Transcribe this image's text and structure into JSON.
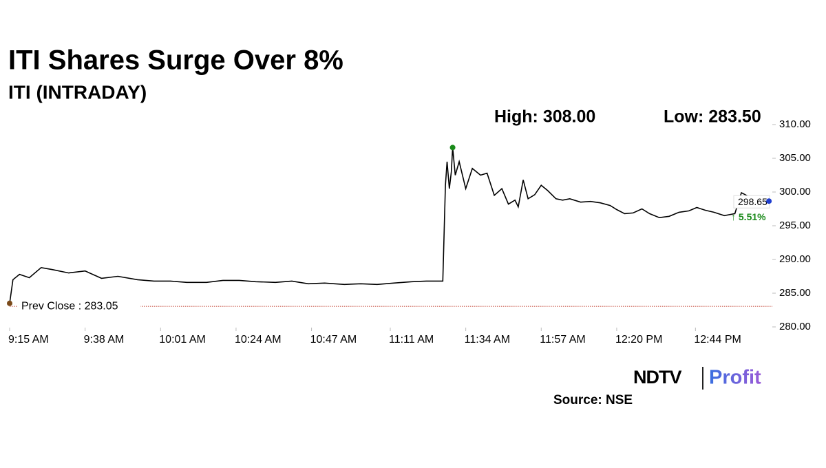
{
  "chart_data": {
    "type": "line",
    "title": "ITI Shares Surge Over 8%",
    "subtitle": "ITI (INTRADAY)",
    "high_label": "High: 308.00",
    "low_label": "Low: 283.50",
    "prev_close": {
      "label": "Prev Close : 283.05",
      "value": 283.05,
      "color": "#c0392b"
    },
    "last_label": "298.65",
    "change_label": "↑ 5.51%",
    "change_color": "#1a8a1a",
    "source": "Source: NSE",
    "logo": {
      "left": "NDTV",
      "right": "Profit"
    },
    "xlim": [
      555,
      787
    ],
    "xticks": [
      {
        "value": 555,
        "label": "9:15 AM"
      },
      {
        "value": 578,
        "label": "9:38 AM"
      },
      {
        "value": 601,
        "label": "10:01 AM"
      },
      {
        "value": 624,
        "label": "10:24 AM"
      },
      {
        "value": 647,
        "label": "10:47 AM"
      },
      {
        "value": 671,
        "label": "11:11 AM"
      },
      {
        "value": 694,
        "label": "11:34 AM"
      },
      {
        "value": 717,
        "label": "11:57 AM"
      },
      {
        "value": 740,
        "label": "12:20 PM"
      },
      {
        "value": 764,
        "label": "12:44 PM"
      }
    ],
    "ylim": [
      280,
      310
    ],
    "yticks": [
      {
        "value": 280,
        "label": "280.00"
      },
      {
        "value": 285,
        "label": "285.00"
      },
      {
        "value": 290,
        "label": "290.00"
      },
      {
        "value": 295,
        "label": "295.00"
      },
      {
        "value": 300,
        "label": "300.00"
      },
      {
        "value": 305,
        "label": "305.00"
      },
      {
        "value": 310,
        "label": "310.00"
      }
    ],
    "x": [
      555,
      556,
      558,
      561,
      564.6,
      568,
      573,
      578,
      583,
      588,
      594,
      599,
      604,
      609,
      615,
      620,
      625,
      630,
      636,
      641,
      646,
      651,
      657,
      662,
      667,
      672,
      677.6,
      682,
      687,
      687.8,
      688.3,
      689,
      689.6,
      690,
      690.8,
      692,
      694,
      696,
      698.5,
      700.5,
      702.7,
      705,
      707,
      709,
      710,
      711.5,
      713,
      715,
      717,
      719,
      721.5,
      723.5,
      725.7,
      729,
      732,
      735,
      738,
      740,
      742.4,
      745,
      747.7,
      750,
      753,
      756,
      759,
      762,
      764.4,
      767,
      769.6,
      772.8,
      776,
      778,
      780,
      782,
      784,
      786.4
    ],
    "series": [
      {
        "name": "ITI",
        "color": "#000000",
        "values": [
          283.5,
          287.0,
          287.8,
          287.3,
          288.8,
          288.5,
          288.0,
          288.3,
          287.2,
          287.5,
          287.0,
          286.8,
          286.8,
          286.6,
          286.6,
          286.9,
          286.9,
          286.7,
          286.6,
          286.8,
          286.4,
          286.5,
          286.3,
          286.4,
          286.3,
          286.5,
          286.7,
          286.8,
          286.8,
          301.0,
          304.5,
          300.5,
          303.0,
          306.6,
          302.5,
          304.5,
          300.5,
          303.5,
          302.5,
          302.8,
          299.5,
          300.5,
          298.2,
          298.8,
          297.8,
          301.8,
          299.0,
          299.6,
          301.0,
          300.2,
          299.0,
          298.8,
          299.0,
          298.5,
          298.6,
          298.4,
          298.0,
          297.4,
          296.8,
          296.9,
          297.5,
          296.8,
          296.2,
          296.4,
          297.0,
          297.2,
          297.7,
          297.3,
          297.0,
          296.5,
          296.8,
          299.9,
          299.4,
          299.2,
          298.8,
          298.65
        ]
      }
    ],
    "start_color": "#7a4a1a",
    "high_color": "#1a8a1a",
    "end_color": "#1f3fd0"
  }
}
